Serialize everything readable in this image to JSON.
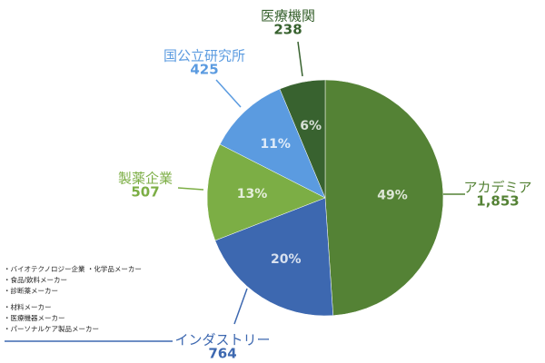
{
  "chart_data": {
    "type": "pie",
    "categories": [
      "アカデミア",
      "インダストリー",
      "製薬企業",
      "国公立研究所",
      "医療機関"
    ],
    "values": [
      1853,
      764,
      507,
      425,
      238
    ],
    "value_labels": [
      "1,853",
      "764",
      "507",
      "425",
      "238"
    ],
    "percent_labels": [
      "49%",
      "20%",
      "13%",
      "11%",
      "6%"
    ],
    "colors": [
      "#548235",
      "#3d68b0",
      "#7cae45",
      "#5b9be0",
      "#38622f"
    ],
    "annotation_lines": [
      "・バイオテクノロジー企業 ・化学品メーカー",
      "・食品/飲料メーカー",
      "・診断薬メーカー",
      "・材料メーカー",
      "・医療機器メーカー",
      "・パーソナルケア製品メーカー"
    ]
  }
}
